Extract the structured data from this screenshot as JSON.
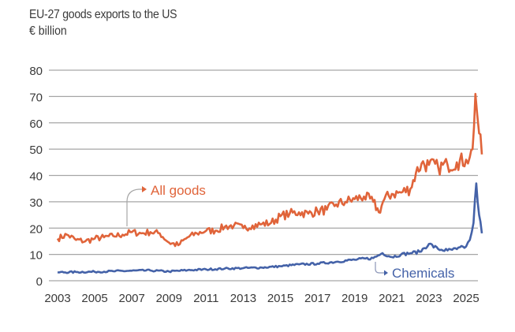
{
  "chart_data": {
    "type": "line",
    "title": "EU-27 goods exports to the US",
    "subtitle": "€ billion",
    "xlabel": "",
    "ylabel": "€ billion",
    "xlim": [
      2003,
      2025.9
    ],
    "ylim": [
      0,
      80
    ],
    "yticks": [
      0,
      10,
      20,
      30,
      40,
      50,
      60,
      70,
      80
    ],
    "xticks": [
      "2003",
      "2005",
      "2007",
      "2009",
      "2011",
      "2013",
      "2015",
      "2017",
      "2019",
      "2021",
      "2023",
      "2025"
    ],
    "grid": true,
    "series": [
      {
        "name": "All goods",
        "color": "#e0643a",
        "x": [
          2003,
          2003.5,
          2004,
          2004.5,
          2005,
          2005.5,
          2006,
          2006.5,
          2007,
          2007.5,
          2008,
          2008.5,
          2009,
          2009.5,
          2010,
          2010.5,
          2011,
          2011.5,
          2012,
          2012.5,
          2013,
          2013.5,
          2014,
          2014.5,
          2015,
          2015.5,
          2016,
          2016.5,
          2017,
          2017.5,
          2018,
          2018.5,
          2019,
          2019.5,
          2020,
          2020.3,
          2020.6,
          2021,
          2021.5,
          2022,
          2022.3,
          2022.6,
          2023,
          2023.5,
          2024,
          2024.5,
          2025,
          2025.2,
          2025.35,
          2025.5,
          2025.7,
          2025.85
        ],
        "values": [
          16,
          17.5,
          15.5,
          15,
          16,
          16.5,
          17,
          17.5,
          18.5,
          18,
          18.5,
          18,
          14.5,
          13.5,
          16.5,
          18,
          19,
          19,
          20.5,
          21,
          20,
          21,
          21.5,
          22,
          24.5,
          25.5,
          26,
          25.5,
          26.5,
          27,
          29,
          30,
          31,
          32,
          30,
          26,
          31,
          33,
          33.5,
          35,
          41,
          44.5,
          44,
          43,
          44,
          45,
          46,
          47,
          50,
          71,
          56,
          48
        ]
      },
      {
        "name": "Chemicals",
        "color": "#4462a8",
        "x": [
          2003,
          2004,
          2005,
          2006,
          2007,
          2008,
          2009,
          2010,
          2011,
          2012,
          2013,
          2014,
          2015,
          2016,
          2017,
          2018,
          2019,
          2020,
          2020.5,
          2021,
          2021.5,
          2022,
          2022.5,
          2023,
          2023.5,
          2024,
          2024.5,
          2025,
          2025.2,
          2025.4,
          2025.55,
          2025.7,
          2025.85
        ],
        "values": [
          3.2,
          3.3,
          3.4,
          3.6,
          3.8,
          3.9,
          3.5,
          4,
          4.3,
          4.6,
          4.8,
          5,
          5.5,
          6.2,
          6.5,
          7.2,
          8,
          8.6,
          10.5,
          9,
          10,
          10.5,
          11,
          14,
          12,
          11.5,
          12,
          13,
          15.5,
          22,
          37,
          25,
          18
        ]
      }
    ],
    "annotations": [
      {
        "text": "All goods",
        "series": "All goods",
        "color": "#e0643a"
      },
      {
        "text": "Chemicals",
        "series": "Chemicals",
        "color": "#4462a8"
      }
    ]
  }
}
